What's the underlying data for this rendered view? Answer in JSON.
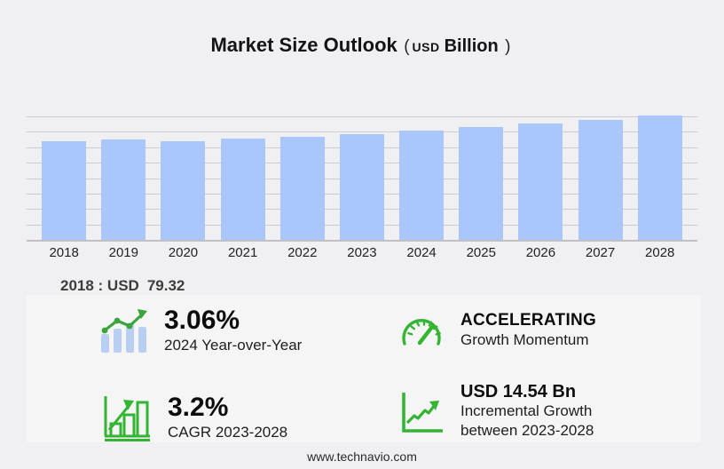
{
  "title": {
    "main": "Market Size Outlook",
    "open_paren": "(",
    "currency": "USD",
    "unit": "Billion",
    "close_paren": ")"
  },
  "chart_data": {
    "type": "bar",
    "title": "Market Size Outlook (USD Billion)",
    "categories": [
      "2018",
      "2019",
      "2020",
      "2021",
      "2022",
      "2023",
      "2024",
      "2025",
      "2026",
      "2027",
      "2028"
    ],
    "values": [
      79.32,
      80.9,
      79.0,
      81.2,
      82.9,
      85.38,
      87.99,
      90.83,
      93.77,
      96.8,
      99.92
    ],
    "xlabel": "",
    "ylabel": "",
    "ylim": [
      0,
      114.3
    ],
    "grid": true,
    "legend": false,
    "bar_color": "#a9c7fb",
    "labeled_point": {
      "category": "2018",
      "label": "2018 : USD",
      "value": "79.32"
    }
  },
  "annotation": {
    "label": "2018 : USD",
    "value": "79.32"
  },
  "stats": [
    {
      "value": "3.06%",
      "label": "2024 Year-over-Year",
      "icon": "bar-chart-trend-icon"
    },
    {
      "value": "ACCELERATING",
      "label": "Growth Momentum",
      "icon": "speedometer-icon"
    },
    {
      "value": "3.2%",
      "label": "CAGR 2023-2028",
      "icon": "growth-bars-icon"
    },
    {
      "value": "USD 14.54 Bn",
      "label_line1": "Incremental Growth",
      "label_line2": "between 2023-2028",
      "icon": "growth-line-icon"
    }
  ],
  "footer": {
    "url": "www.technavio.com"
  },
  "colors": {
    "background": "#f0f0f2",
    "panel": "#f5f5f6",
    "bar": "#a9c7fb",
    "gridline": "#cbcbd0",
    "accent_green": "#33b333",
    "icon_bar_blue": "#b9cff2"
  }
}
